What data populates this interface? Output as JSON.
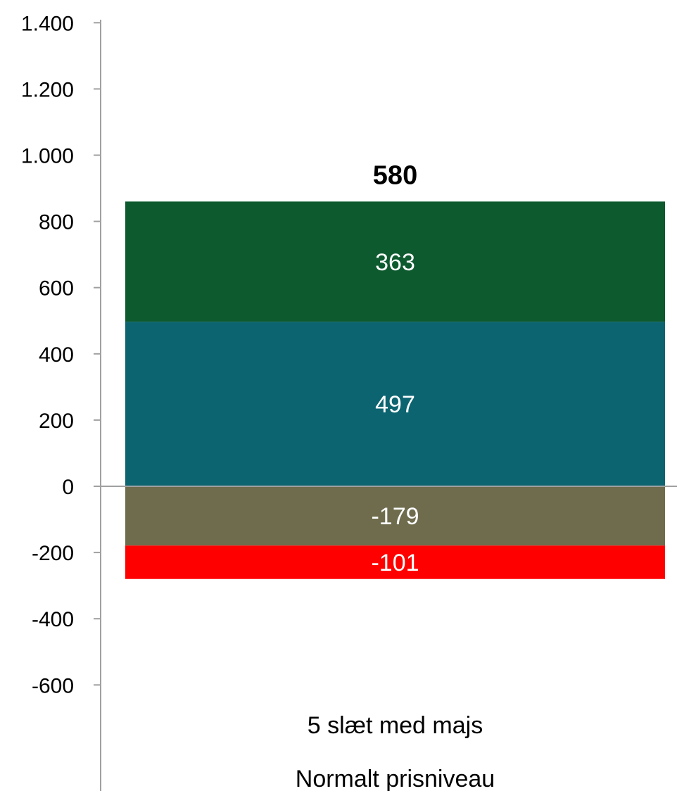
{
  "chart_data": {
    "type": "bar",
    "stacked": true,
    "categories": [
      "5 slæt med majs"
    ],
    "category_sublabel": "Normalt prisniveau",
    "series": [
      {
        "values": [
          497
        ],
        "color": "#0b6470"
      },
      {
        "values": [
          363
        ],
        "color": "#0e5a2f"
      },
      {
        "values": [
          -179
        ],
        "color": "#6e6c4d"
      },
      {
        "values": [
          -101
        ],
        "color": "#ff0000"
      }
    ],
    "data_labels": [
      "497",
      "363",
      "-179",
      "-101"
    ],
    "total": 580,
    "total_label": "580",
    "ylim": [
      -600,
      1400
    ],
    "yticks": [
      -600,
      -400,
      -200,
      0,
      200,
      400,
      600,
      800,
      1000,
      1200,
      1400
    ],
    "ytick_labels": [
      "-600",
      "-400",
      "-200",
      "0",
      "200",
      "400",
      "600",
      "800",
      "1.000",
      "1.200",
      "1.400"
    ],
    "grid": false,
    "legend": "none",
    "axis_color": "#a0a0a0"
  }
}
